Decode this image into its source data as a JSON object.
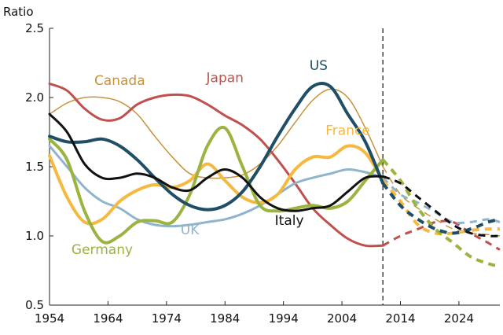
{
  "chart_data": {
    "type": "line",
    "title": "",
    "xlabel": "",
    "ylabel": "Ratio",
    "xlim": [
      1954,
      2031
    ],
    "ylim": [
      0.5,
      2.5
    ],
    "x_ticks": [
      "1954",
      "1964",
      "1974",
      "1984",
      "1994",
      "2004",
      "2014",
      "2024"
    ],
    "y_ticks": [
      "0.5",
      "1.0",
      "1.5",
      "2.0",
      "2.5"
    ],
    "projection_start": 2011,
    "series": [
      {
        "name": "Canada",
        "color": "#c8923a",
        "width": 1.5,
        "x": [
          1954,
          1957,
          1960,
          1963,
          1966,
          1969,
          1972,
          1975,
          1978,
          1981,
          1984,
          1987,
          1990,
          1993,
          1996,
          1999,
          2002,
          2005,
          2008,
          2011
        ],
        "y": [
          1.88,
          1.96,
          2.0,
          2.0,
          1.97,
          1.88,
          1.72,
          1.57,
          1.45,
          1.42,
          1.42,
          1.44,
          1.52,
          1.65,
          1.82,
          1.98,
          2.06,
          2.0,
          1.78,
          1.5
        ],
        "proj_x": [
          2011,
          2014,
          2017,
          2020,
          2023,
          2026,
          2029,
          2031
        ],
        "proj_y": [
          1.5,
          1.3,
          1.2,
          1.12,
          1.05,
          1.02,
          1.01,
          1.0
        ]
      },
      {
        "name": "Japan",
        "color": "#c0504d",
        "width": 3,
        "x": [
          1954,
          1957,
          1960,
          1963,
          1966,
          1969,
          1972,
          1975,
          1978,
          1981,
          1984,
          1987,
          1990,
          1993,
          1996,
          1999,
          2002,
          2005,
          2008,
          2011
        ],
        "y": [
          2.1,
          2.05,
          1.92,
          1.84,
          1.85,
          1.95,
          2.0,
          2.02,
          2.01,
          1.95,
          1.87,
          1.8,
          1.7,
          1.55,
          1.38,
          1.2,
          1.08,
          0.98,
          0.93,
          0.93
        ],
        "proj_x": [
          2011,
          2014,
          2017,
          2020,
          2023,
          2026,
          2029,
          2031
        ],
        "proj_y": [
          0.93,
          1.0,
          1.05,
          1.1,
          1.1,
          1.02,
          0.95,
          0.9
        ]
      },
      {
        "name": "UK",
        "color": "#8fb4cc",
        "width": 3,
        "x": [
          1954,
          1957,
          1960,
          1963,
          1966,
          1969,
          1972,
          1975,
          1978,
          1981,
          1984,
          1987,
          1990,
          1993,
          1996,
          1999,
          2002,
          2005,
          2008,
          2011
        ],
        "y": [
          1.65,
          1.5,
          1.35,
          1.25,
          1.2,
          1.12,
          1.08,
          1.07,
          1.08,
          1.1,
          1.12,
          1.16,
          1.22,
          1.3,
          1.38,
          1.42,
          1.45,
          1.48,
          1.46,
          1.42
        ],
        "proj_x": [
          2011,
          2014,
          2017,
          2020,
          2023,
          2026,
          2029,
          2031
        ],
        "proj_y": [
          1.42,
          1.3,
          1.24,
          1.17,
          1.1,
          1.1,
          1.12,
          1.1
        ]
      },
      {
        "name": "France",
        "color": "#f5b942",
        "width": 4,
        "x": [
          1954,
          1957,
          1960,
          1963,
          1966,
          1969,
          1972,
          1975,
          1978,
          1981,
          1984,
          1987,
          1990,
          1993,
          1996,
          1999,
          2002,
          2005,
          2008,
          2011
        ],
        "y": [
          1.58,
          1.28,
          1.1,
          1.12,
          1.25,
          1.33,
          1.37,
          1.35,
          1.4,
          1.52,
          1.4,
          1.28,
          1.24,
          1.3,
          1.48,
          1.57,
          1.57,
          1.65,
          1.6,
          1.4
        ],
        "proj_x": [
          2011,
          2014,
          2017,
          2020,
          2023,
          2026,
          2029,
          2031
        ],
        "proj_y": [
          1.4,
          1.25,
          1.08,
          1.02,
          1.02,
          1.04,
          1.05,
          1.05
        ]
      },
      {
        "name": "Germany",
        "color": "#9bb33f",
        "width": 4,
        "x": [
          1954,
          1957,
          1960,
          1963,
          1966,
          1969,
          1972,
          1975,
          1978,
          1981,
          1984,
          1987,
          1990,
          1993,
          1996,
          1999,
          2002,
          2005,
          2008,
          2011
        ],
        "y": [
          1.7,
          1.55,
          1.18,
          0.96,
          1.0,
          1.1,
          1.11,
          1.1,
          1.3,
          1.65,
          1.78,
          1.5,
          1.22,
          1.18,
          1.2,
          1.22,
          1.2,
          1.25,
          1.4,
          1.55
        ],
        "proj_x": [
          2011,
          2014,
          2017,
          2020,
          2023,
          2026,
          2029,
          2031
        ],
        "proj_y": [
          1.55,
          1.4,
          1.2,
          1.05,
          0.95,
          0.85,
          0.8,
          0.78
        ]
      },
      {
        "name": "US",
        "color": "#1f4e66",
        "width": 4,
        "x": [
          1954,
          1957,
          1960,
          1963,
          1966,
          1969,
          1972,
          1975,
          1978,
          1981,
          1984,
          1987,
          1990,
          1993,
          1996,
          1999,
          2002,
          2005,
          2008,
          2011
        ],
        "y": [
          1.72,
          1.68,
          1.68,
          1.7,
          1.65,
          1.55,
          1.42,
          1.3,
          1.22,
          1.19,
          1.22,
          1.32,
          1.5,
          1.72,
          1.92,
          2.08,
          2.08,
          1.88,
          1.68,
          1.38
        ],
        "proj_x": [
          2011,
          2014,
          2017,
          2020,
          2023,
          2026,
          2029,
          2031
        ],
        "proj_y": [
          1.38,
          1.22,
          1.12,
          1.05,
          1.02,
          1.05,
          1.1,
          1.12
        ]
      },
      {
        "name": "Italy",
        "color": "#111111",
        "width": 3,
        "x": [
          1954,
          1957,
          1960,
          1963,
          1966,
          1969,
          1972,
          1975,
          1978,
          1981,
          1984,
          1987,
          1990,
          1993,
          1996,
          1999,
          2002,
          2005,
          2008,
          2011
        ],
        "y": [
          1.88,
          1.75,
          1.52,
          1.42,
          1.42,
          1.45,
          1.42,
          1.35,
          1.33,
          1.42,
          1.48,
          1.42,
          1.28,
          1.2,
          1.18,
          1.2,
          1.22,
          1.32,
          1.42,
          1.43
        ],
        "proj_x": [
          2011,
          2014,
          2017,
          2020,
          2023,
          2026,
          2029,
          2031
        ],
        "proj_y": [
          1.43,
          1.38,
          1.28,
          1.18,
          1.08,
          1.02,
          1.0,
          1.0
        ]
      }
    ],
    "annotations": [
      {
        "text": "Canada",
        "series": "Canada",
        "x": 1966,
        "y": 2.09
      },
      {
        "text": "Japan",
        "series": "Japan",
        "x": 1984,
        "y": 2.11
      },
      {
        "text": "US",
        "series": "US",
        "x": 2000,
        "y": 2.2
      },
      {
        "text": "France",
        "series": "France",
        "x": 2005,
        "y": 1.73
      },
      {
        "text": "UK",
        "series": "UK",
        "x": 1978,
        "y": 1.01
      },
      {
        "text": "Italy",
        "series": "Italy",
        "x": 1995,
        "y": 1.08
      },
      {
        "text": "Germany",
        "series": "Germany",
        "x": 1963,
        "y": 0.87
      }
    ]
  }
}
